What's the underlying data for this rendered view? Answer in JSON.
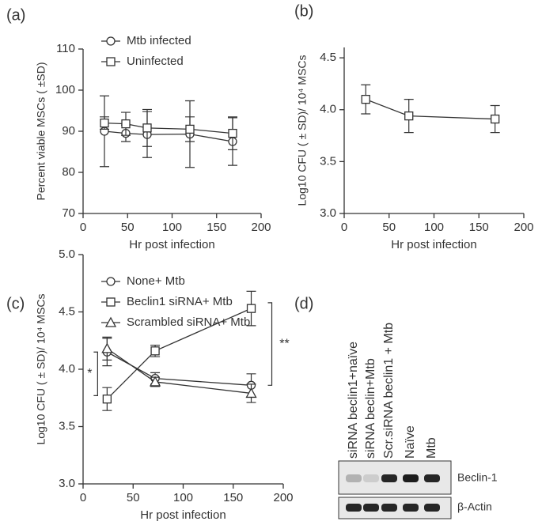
{
  "chart_data": [
    {
      "type": "line",
      "title": "(a)",
      "xlabel": "Hr post infection",
      "ylabel": "Percent viable MSCs ( ±SD)",
      "xlim": [
        0,
        200
      ],
      "xticks": [
        0,
        50,
        100,
        150,
        200
      ],
      "ylim": [
        70,
        110
      ],
      "yticks": [
        70,
        80,
        90,
        100,
        110
      ],
      "x": [
        24,
        48,
        72,
        120,
        168
      ],
      "series": [
        {
          "name": "Mtb infected",
          "color": "#333333",
          "marker": "circle",
          "values": [
            90,
            89.5,
            89.2,
            89.3,
            87.5
          ],
          "errors": [
            8.6,
            2,
            5.6,
            8.1,
            5.8
          ]
        },
        {
          "name": "Uninfected",
          "color": "#333333",
          "marker": "square",
          "values": [
            92,
            91.8,
            90.8,
            90.5,
            89.5
          ],
          "errors": [
            1.5,
            2.8,
            4.5,
            3,
            4
          ]
        }
      ]
    },
    {
      "type": "line",
      "title": "(b)",
      "xlabel": "Hr post infection",
      "ylabel": "Log10 CFU ( ± SD)/ 10⁴ MSCs",
      "xlim": [
        0,
        200
      ],
      "xticks": [
        0,
        50,
        100,
        150,
        200
      ],
      "ylim": [
        3,
        4.6
      ],
      "yticks": [
        {
          "value": 3,
          "label": "3.0"
        },
        {
          "value": 3.5,
          "label": "3.5"
        },
        {
          "value": 4,
          "label": "4.0"
        },
        {
          "value": 4.5,
          "label": "4.5"
        }
      ],
      "x": [
        24,
        72,
        168
      ],
      "series": [
        {
          "color": "#333333",
          "marker": "square",
          "values": [
            4.1,
            3.94,
            3.91
          ],
          "errors": [
            0.14,
            0.16,
            0.13
          ]
        }
      ]
    },
    {
      "type": "line",
      "title": "(c)",
      "xlabel": "Hr post infection",
      "ylabel": "Log10 CFU ( ± SD)/ 10⁴ MSCs",
      "xlim": [
        0,
        200
      ],
      "xticks": [
        0,
        50,
        100,
        150,
        200
      ],
      "ylim": [
        3,
        5
      ],
      "yticks": [
        {
          "value": 3,
          "label": "3.0"
        },
        {
          "value": 3.5,
          "label": "3.5"
        },
        {
          "value": 4,
          "label": "4.0"
        },
        {
          "value": 4.5,
          "label": "4.5"
        },
        {
          "value": 5,
          "label": "5.0"
        }
      ],
      "x": [
        24,
        72,
        168
      ],
      "series": [
        {
          "name": "None+ Mtb",
          "color": "#333333",
          "marker": "circle",
          "values": [
            4.15,
            3.92,
            3.86
          ],
          "errors": [
            0.12,
            0.05,
            0.1
          ]
        },
        {
          "name": "Beclin1 siRNA+ Mtb",
          "color": "#333333",
          "marker": "square",
          "values": [
            3.74,
            4.16,
            4.53
          ],
          "errors": [
            0.1,
            0.05,
            0.15
          ]
        },
        {
          "name": "Scrambled siRNA+ Mtb",
          "color": "#333333",
          "marker": "triangle",
          "values": [
            4.18,
            3.89,
            3.79
          ],
          "errors": [
            0.1,
            0.04,
            0.08
          ]
        }
      ],
      "annotations": [
        "*",
        "**"
      ]
    }
  ],
  "blot": {
    "label": "(d)",
    "lanes": [
      "siRNA beclin1+naïve",
      "siRNA beclin+Mtb",
      "Scr.siRNA beclin1 + Mtb",
      "Naïve",
      "Mtb"
    ],
    "bands": [
      "Beclin-1",
      "β-Actin"
    ]
  }
}
